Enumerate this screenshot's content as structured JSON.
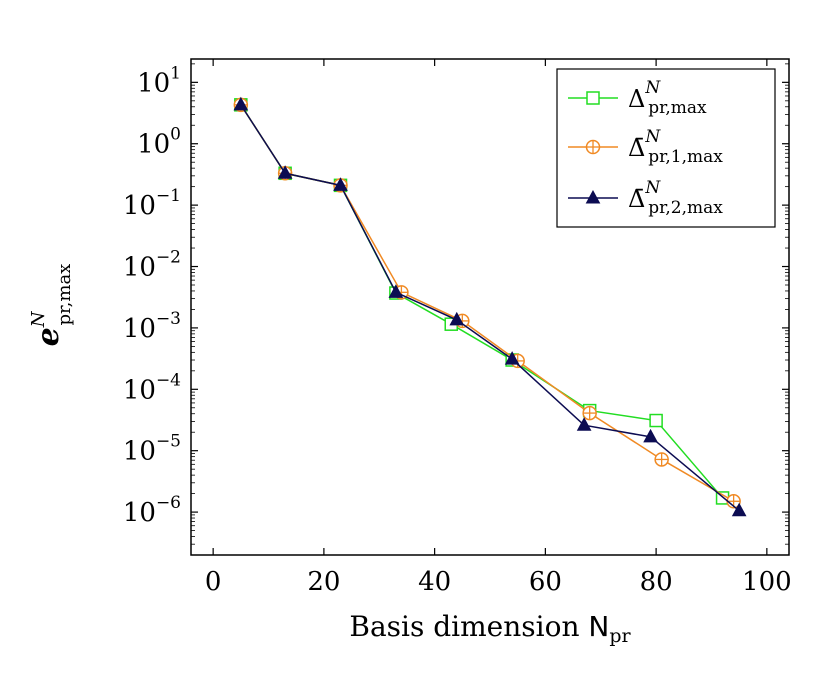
{
  "chart_data": {
    "type": "line",
    "y_scale": "log",
    "xlabel_main": "Basis dimension ",
    "xlabel_symbol": "N",
    "xlabel_sub": "pr",
    "ylabel_main": "e",
    "ylabel_sup": "N",
    "ylabel_sub": "pr,max",
    "xlim": [
      -4,
      104
    ],
    "ylim": [
      2e-07,
      24.0
    ],
    "x_ticks": [
      0,
      20,
      40,
      60,
      80,
      100
    ],
    "x_tick_labels": [
      "0",
      "20",
      "40",
      "60",
      "80",
      "100"
    ],
    "y_ticks": [
      1e-06,
      1e-05,
      0.0001,
      0.001,
      0.01,
      0.1,
      1.0,
      10.0
    ],
    "y_tick_exponents": [
      "−6",
      "−5",
      "−4",
      "−3",
      "−2",
      "−1",
      "0",
      "1"
    ],
    "y_tick_base": "10",
    "legend_position": "top-right",
    "grid": false,
    "series": [
      {
        "name_main": "Δ",
        "name_sup": "N",
        "name_sub": "pr,max",
        "marker": "square",
        "color": "#22dd22",
        "x": [
          5,
          13,
          23,
          33,
          43,
          54,
          68,
          80,
          92
        ],
        "y": [
          4.3,
          0.33,
          0.21,
          0.0037,
          0.00115,
          0.0003,
          4.5e-05,
          3.1e-05,
          1.7e-06
        ]
      },
      {
        "name_main": "Δ̄",
        "name_sup": "N",
        "name_sub": "pr,1,max",
        "marker": "circle-plus",
        "color": "#f08a24",
        "x": [
          5,
          13,
          23,
          34,
          45,
          55,
          68,
          81,
          94
        ],
        "y": [
          4.3,
          0.33,
          0.21,
          0.0038,
          0.0013,
          0.00029,
          4.1e-05,
          7.2e-06,
          1.5e-06
        ]
      },
      {
        "name_main": "Δ̄",
        "name_sup": "N",
        "name_sub": "pr,2,max",
        "marker": "triangle",
        "color": "#0c0c52",
        "x": [
          5,
          13,
          23,
          33,
          44,
          54,
          67,
          79,
          95
        ],
        "y": [
          4.3,
          0.33,
          0.21,
          0.0038,
          0.00135,
          0.00031,
          2.6e-05,
          1.68e-05,
          1.05e-06
        ]
      }
    ]
  }
}
